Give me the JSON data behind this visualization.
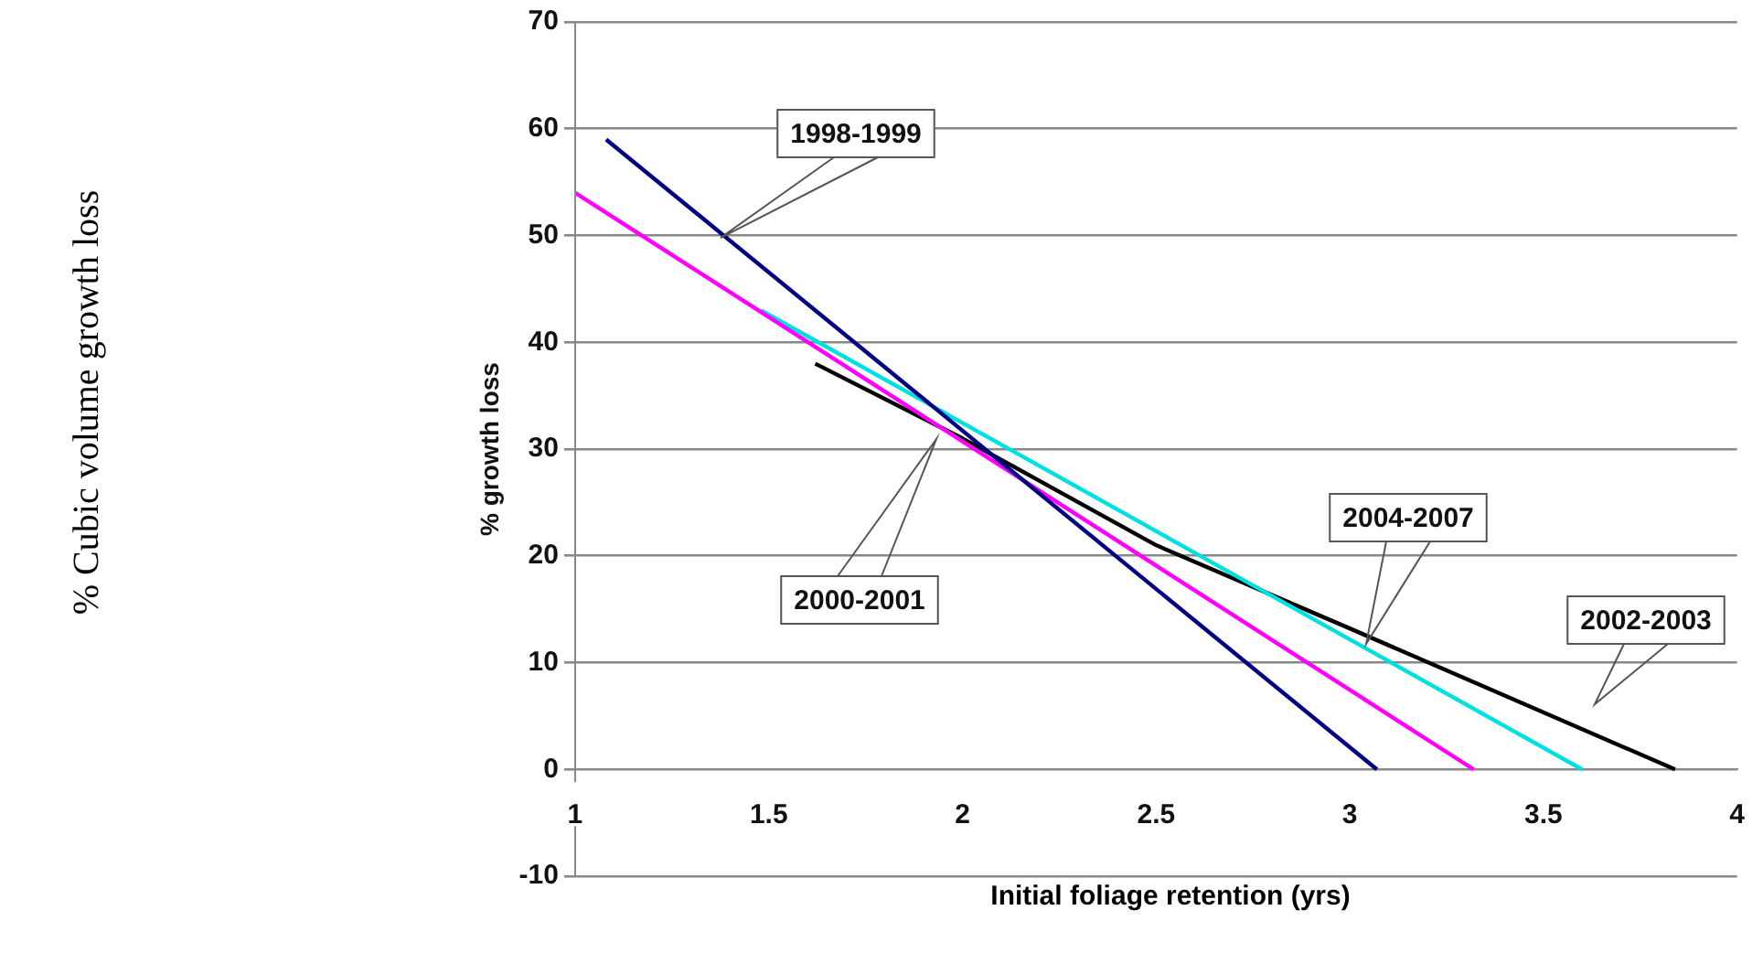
{
  "chart_data": {
    "type": "line",
    "xlabel": "Initial foliage retention (yrs)",
    "ylabel": "% growth loss",
    "xlim": [
      1,
      4
    ],
    "xticks": [
      1,
      1.5,
      2,
      2.5,
      3,
      3.5,
      4
    ],
    "ylim": [
      -10,
      70
    ],
    "yticks": [
      -10,
      0,
      10,
      20,
      30,
      40,
      50,
      60,
      70
    ],
    "grid": "y",
    "marker": "none",
    "line_style": "solid",
    "series": [
      {
        "color": "#000080",
        "x": [
          1.08,
          3.07
        ],
        "values": [
          59,
          0
        ]
      },
      {
        "color": "#ff00ff",
        "x": [
          1.0,
          3.32
        ],
        "values": [
          54,
          0
        ]
      },
      {
        "color": "#00e0e0",
        "x": [
          1.48,
          3.6
        ],
        "values": [
          43,
          0
        ]
      },
      {
        "color": "#000000",
        "x": [
          1.62,
          2.0,
          2.5,
          3.0,
          3.84
        ],
        "values": [
          38,
          31,
          21,
          13.2,
          0
        ]
      }
    ],
    "annotations": [
      "% Cubic volume growth loss",
      "1998-1999",
      "2000-2001",
      "2004-2007",
      "2002-2003"
    ]
  }
}
